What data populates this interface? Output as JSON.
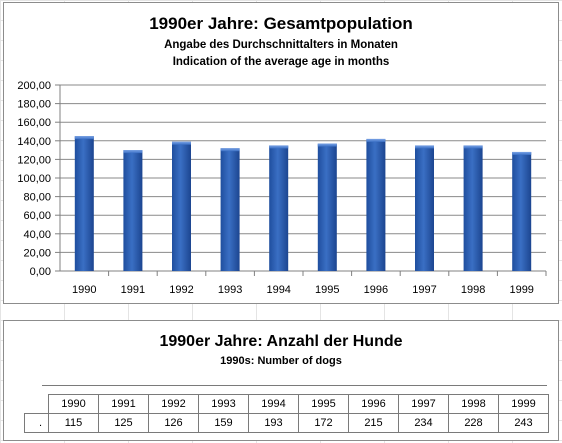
{
  "chart_data": {
    "type": "bar",
    "title": "1990er Jahre: Gesamtpopulation",
    "subtitle_de": "Angabe des Durchschnittalters in Monaten",
    "subtitle_en": "Indication of the average age in months",
    "categories": [
      "1990",
      "1991",
      "1992",
      "1993",
      "1994",
      "1995",
      "1996",
      "1997",
      "1998",
      "1999"
    ],
    "values": [
      145,
      130,
      139,
      132,
      135,
      137,
      142,
      135,
      135,
      128
    ],
    "ylim": [
      0,
      200
    ],
    "ytick_labels": [
      "0,00",
      "20,00",
      "40,00",
      "60,00",
      "80,00",
      "100,00",
      "120,00",
      "140,00",
      "160,00",
      "180,00",
      "200,00"
    ],
    "grid": true,
    "bar_color": "#3a6fc4"
  },
  "dogs_table": {
    "title": "1990er Jahre: Anzahl der Hunde",
    "subtitle": "1990s: Number of dogs",
    "row_label": ".",
    "years": [
      "1990",
      "1991",
      "1992",
      "1993",
      "1994",
      "1995",
      "1996",
      "1997",
      "1998",
      "1999"
    ],
    "counts": [
      "115",
      "125",
      "126",
      "159",
      "193",
      "172",
      "215",
      "234",
      "228",
      "243"
    ]
  }
}
